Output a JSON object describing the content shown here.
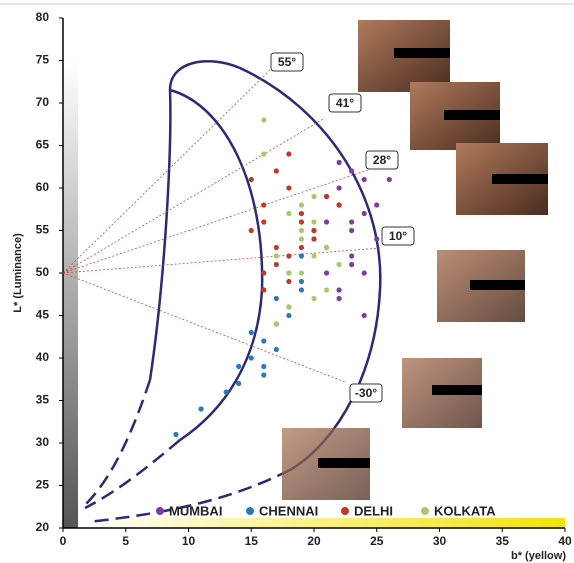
{
  "chart_data": {
    "type": "scatter",
    "xlabel": "b* (yellow)",
    "ylabel": "L* (Luminance)",
    "xlim": [
      0,
      40
    ],
    "ylim": [
      20,
      80
    ],
    "xticks": [
      0,
      5,
      10,
      15,
      20,
      25,
      30,
      35,
      40
    ],
    "yticks": [
      20,
      25,
      30,
      35,
      40,
      45,
      50,
      55,
      60,
      65,
      70,
      75,
      80
    ],
    "annotations": [
      "55°",
      "41°",
      "28°",
      "10°",
      "-30°"
    ],
    "series": [
      {
        "name": "MUMBAI",
        "color": "#7b3f9e",
        "x": [
          21,
          22,
          23,
          24,
          25,
          22,
          23,
          24,
          21,
          22,
          23,
          25,
          24,
          22,
          21,
          23,
          24,
          20,
          22,
          26,
          23,
          21
        ],
        "values": [
          56,
          58,
          55,
          57,
          54,
          60,
          52,
          50,
          53,
          48,
          62,
          58,
          61,
          47,
          59,
          56,
          45,
          55,
          63,
          61,
          51,
          50
        ]
      },
      {
        "name": "CHENNAI",
        "color": "#2a7ab8",
        "x": [
          9,
          11,
          13,
          14,
          15,
          16,
          17,
          18,
          19,
          17,
          18,
          16,
          15,
          19,
          20,
          18,
          17,
          16,
          14,
          19
        ],
        "values": [
          31,
          34,
          36,
          39,
          40,
          42,
          44,
          46,
          48,
          41,
          50,
          38,
          43,
          52,
          54,
          45,
          47,
          39,
          37,
          49
        ]
      },
      {
        "name": "DELHI",
        "color": "#c0392b",
        "x": [
          15,
          16,
          17,
          18,
          19,
          20,
          16,
          17,
          18,
          19,
          21,
          15,
          16,
          18,
          20,
          17,
          19,
          16,
          22,
          18
        ],
        "values": [
          55,
          58,
          53,
          60,
          56,
          54,
          50,
          62,
          52,
          57,
          59,
          61,
          48,
          64,
          55,
          51,
          53,
          56,
          58,
          49
        ]
      },
      {
        "name": "KOLKATA",
        "color": "#a8c96a",
        "x": [
          16,
          17,
          18,
          19,
          20,
          21,
          18,
          19,
          20,
          17,
          19,
          21,
          18,
          20,
          16,
          19,
          22,
          20
        ],
        "values": [
          68,
          52,
          50,
          54,
          56,
          48,
          46,
          58,
          52,
          44,
          50,
          53,
          57,
          47,
          64,
          55,
          51,
          59
        ]
      }
    ]
  }
}
